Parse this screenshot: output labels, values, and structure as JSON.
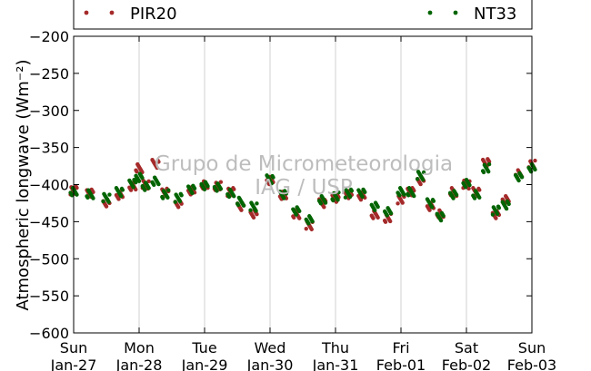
{
  "chart_data": {
    "type": "scatter",
    "title": "",
    "ylabel": "Atmospheric longwave (Wm⁻²)",
    "xlabel": "",
    "ylim": [
      -600,
      -200
    ],
    "xlim": [
      0,
      7
    ],
    "yticks": [
      -600,
      -550,
      -500,
      -450,
      -400,
      -350,
      -300,
      -250,
      -200
    ],
    "ytick_labels": [
      "−600",
      "−550",
      "−500",
      "−450",
      "−400",
      "−350",
      "−300",
      "−250",
      "−200"
    ],
    "xticks": [
      0,
      1,
      2,
      3,
      4,
      5,
      6,
      7
    ],
    "xtick_labels": [
      [
        "Sun",
        "Jan-27"
      ],
      [
        "Mon",
        "Jan-28"
      ],
      [
        "Tue",
        "Jan-29"
      ],
      [
        "Wed",
        "Jan-30"
      ],
      [
        "Thu",
        "Jan-31"
      ],
      [
        "Fri",
        "Feb-01"
      ],
      [
        "Sat",
        "Feb-02"
      ],
      [
        "Sun",
        "Feb-03"
      ]
    ],
    "grid": "vertical",
    "legend_position": "top",
    "watermark": [
      "Grupo de Micrometeorologia",
      "IAG / USP"
    ],
    "series": [
      {
        "name": "PIR20",
        "color": "#a52a2a",
        "x": [
          0.0,
          0.25,
          0.5,
          0.7,
          0.9,
          1.0,
          1.1,
          1.25,
          1.4,
          1.6,
          1.8,
          2.0,
          2.2,
          2.4,
          2.55,
          2.75,
          3.0,
          3.2,
          3.4,
          3.6,
          3.8,
          4.0,
          4.2,
          4.4,
          4.6,
          4.8,
          5.0,
          5.15,
          5.3,
          5.45,
          5.6,
          5.8,
          6.0,
          6.15,
          6.3,
          6.45,
          6.6,
          6.8,
          7.0
        ],
        "y": [
          -408,
          -412,
          -425,
          -415,
          -403,
          -378,
          -400,
          -372,
          -410,
          -425,
          -408,
          -400,
          -402,
          -410,
          -430,
          -440,
          -395,
          -415,
          -440,
          -455,
          -425,
          -418,
          -413,
          -415,
          -440,
          -445,
          -420,
          -410,
          -395,
          -430,
          -440,
          -410,
          -400,
          -410,
          -370,
          -440,
          -420,
          -385,
          -373
        ]
      },
      {
        "name": "NT33",
        "color": "#006400",
        "x": [
          0.0,
          0.25,
          0.5,
          0.7,
          0.9,
          1.0,
          1.1,
          1.25,
          1.4,
          1.6,
          1.8,
          2.0,
          2.2,
          2.4,
          2.55,
          2.75,
          3.0,
          3.2,
          3.4,
          3.6,
          3.8,
          4.0,
          4.2,
          4.4,
          4.6,
          4.8,
          5.0,
          5.15,
          5.3,
          5.45,
          5.6,
          5.8,
          6.0,
          6.15,
          6.3,
          6.45,
          6.6,
          6.8,
          7.0
        ],
        "y": [
          -410,
          -413,
          -418,
          -410,
          -398,
          -390,
          -402,
          -395,
          -413,
          -418,
          -407,
          -402,
          -404,
          -412,
          -423,
          -430,
          -393,
          -413,
          -435,
          -447,
          -420,
          -416,
          -412,
          -412,
          -430,
          -437,
          -410,
          -410,
          -388,
          -425,
          -443,
          -413,
          -398,
          -413,
          -378,
          -435,
          -428,
          -390,
          -378
        ]
      }
    ]
  }
}
